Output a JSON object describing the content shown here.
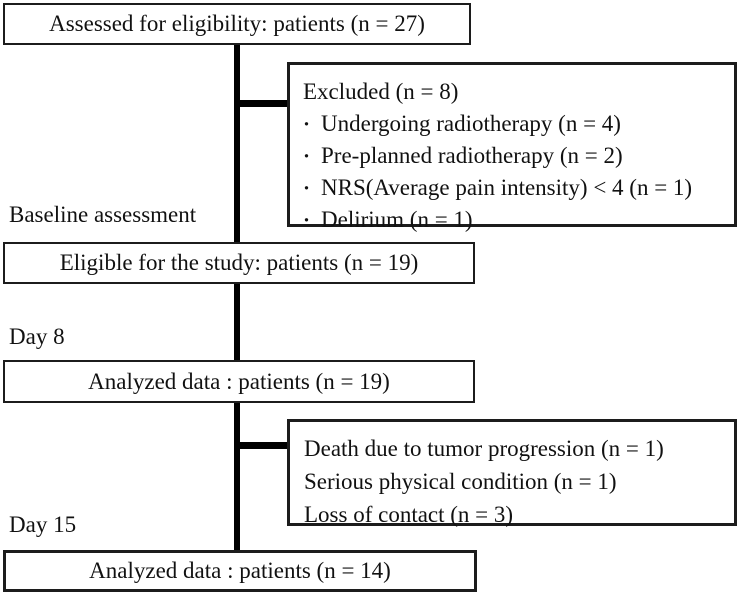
{
  "diagram": {
    "assessed_box": {
      "label": "Assessed for eligibility: patients (n = 27)"
    },
    "excluded_box": {
      "title": "Excluded (n = 8)",
      "bullet": "·",
      "items": [
        "Undergoing radiotherapy (n = 4)",
        "Pre-planned radiotherapy (n = 2)",
        "NRS(Average pain intensity) < 4 (n = 1)",
        "Delirium (n = 1)"
      ]
    },
    "baseline_label": "Baseline assessment",
    "eligible_box": {
      "label": "Eligible for the study: patients (n = 19)"
    },
    "day8_label": "Day 8",
    "analyzed_day8_box": {
      "label": "Analyzed data : patients (n = 19)"
    },
    "dropout_box": {
      "items": [
        "Death due to tumor progression (n = 1)",
        "Serious physical condition (n = 1)",
        "Loss of contact (n = 3)"
      ]
    },
    "day15_label": "Day 15",
    "analyzed_day15_box": {
      "label": "Analyzed data : patients (n = 14)"
    }
  },
  "colors": {
    "line": "#000000",
    "border": "#1c1c1c",
    "background": "#ffffff",
    "text": "#111111"
  }
}
